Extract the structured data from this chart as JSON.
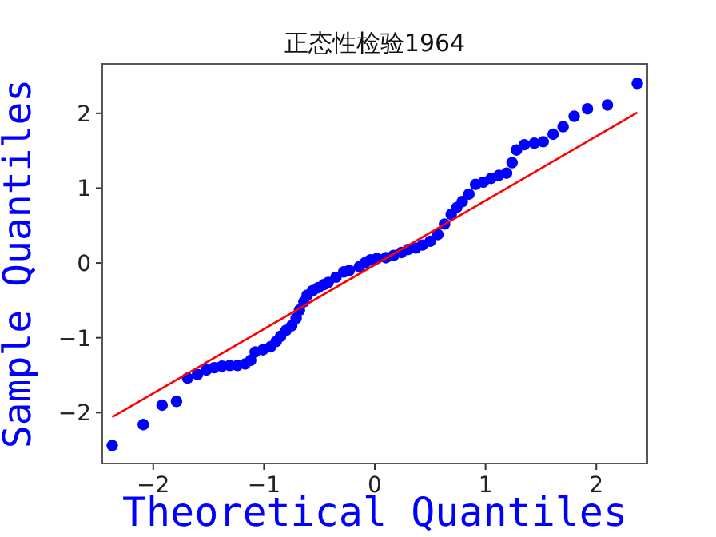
{
  "chart_data": {
    "type": "scatter",
    "title": "正态性检验1964",
    "xlabel": "Theoretical Quantiles",
    "ylabel": "Sample Quantiles",
    "xlim": [
      -2.46,
      2.46
    ],
    "ylim": [
      -2.68,
      2.66
    ],
    "xticks": [
      -2,
      -1,
      0,
      1,
      2
    ],
    "yticks": [
      -2,
      -1,
      0,
      1,
      2
    ],
    "series": [
      {
        "marker": "circle",
        "color": "#0000ff",
        "x": [
          -2.37,
          -2.09,
          -1.92,
          -1.79,
          -1.69,
          -1.6,
          -1.52,
          -1.45,
          -1.38,
          -1.31,
          -1.24,
          -1.17,
          -1.12,
          -1.08,
          -1.01,
          -0.94,
          -0.89,
          -0.85,
          -0.8,
          -0.75,
          -0.71,
          -0.68,
          -0.64,
          -0.61,
          -0.56,
          -0.51,
          -0.46,
          -0.42,
          -0.35,
          -0.28,
          -0.23,
          -0.14,
          -0.09,
          -0.04,
          0.02,
          0.1,
          0.17,
          0.24,
          0.3,
          0.37,
          0.43,
          0.5,
          0.57,
          0.63,
          0.69,
          0.74,
          0.79,
          0.85,
          0.91,
          0.98,
          1.05,
          1.12,
          1.19,
          1.24,
          1.28,
          1.35,
          1.44,
          1.52,
          1.61,
          1.7,
          1.8,
          1.92,
          2.1,
          2.37
        ],
        "values": [
          -2.44,
          -2.16,
          -1.9,
          -1.85,
          -1.54,
          -1.49,
          -1.43,
          -1.4,
          -1.38,
          -1.37,
          -1.37,
          -1.35,
          -1.3,
          -1.19,
          -1.16,
          -1.12,
          -1.05,
          -0.98,
          -0.9,
          -0.84,
          -0.74,
          -0.63,
          -0.52,
          -0.43,
          -0.37,
          -0.33,
          -0.29,
          -0.26,
          -0.19,
          -0.12,
          -0.1,
          -0.05,
          0.0,
          0.04,
          0.06,
          0.07,
          0.1,
          0.14,
          0.18,
          0.2,
          0.24,
          0.29,
          0.38,
          0.52,
          0.65,
          0.74,
          0.82,
          0.92,
          1.05,
          1.08,
          1.13,
          1.17,
          1.2,
          1.34,
          1.51,
          1.58,
          1.6,
          1.62,
          1.72,
          1.82,
          1.96,
          2.06,
          2.11,
          2.4
        ]
      },
      {
        "type": "line",
        "color": "#ff0000",
        "x": [
          -2.37,
          2.37
        ],
        "values": [
          -2.06,
          2.01
        ]
      }
    ]
  }
}
